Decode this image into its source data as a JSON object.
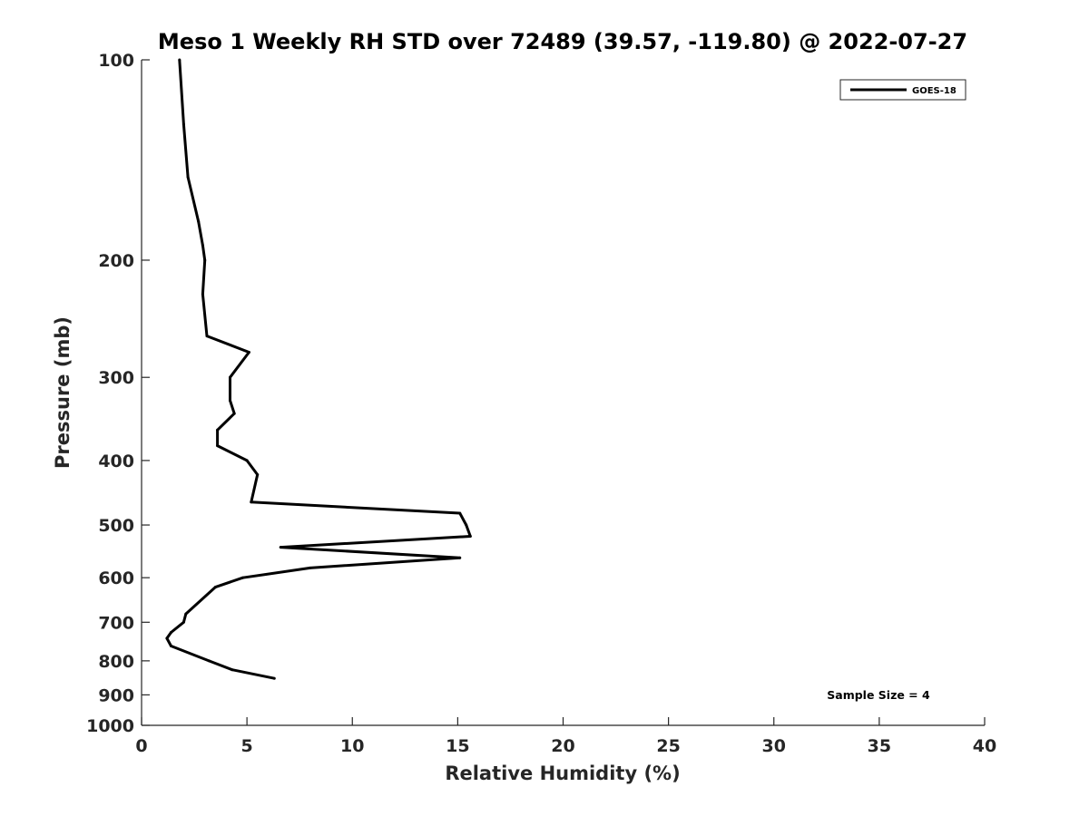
{
  "chart_data": {
    "type": "line",
    "title": "Meso 1 Weekly RH STD over 72489 (39.57, -119.80) @ 2022-07-27",
    "xlabel": "Relative Humidity (%)",
    "ylabel": "Pressure (mb)",
    "xlim": [
      0,
      40
    ],
    "ylim": [
      1000,
      100
    ],
    "yscale": "log",
    "x_ticks": [
      0,
      5,
      10,
      15,
      20,
      25,
      30,
      35,
      40
    ],
    "y_ticks": [
      100,
      200,
      300,
      400,
      500,
      600,
      700,
      800,
      900,
      1000
    ],
    "grid": false,
    "legend_position": "top-right",
    "annotation": "Sample Size = 4",
    "series": [
      {
        "name": "GOES-18",
        "color": "#000000",
        "points": [
          {
            "rh": 1.8,
            "p": 100
          },
          {
            "rh": 2.0,
            "p": 125
          },
          {
            "rh": 2.2,
            "p": 150
          },
          {
            "rh": 2.7,
            "p": 175
          },
          {
            "rh": 2.9,
            "p": 190
          },
          {
            "rh": 3.0,
            "p": 200
          },
          {
            "rh": 2.9,
            "p": 225
          },
          {
            "rh": 3.1,
            "p": 260
          },
          {
            "rh": 5.1,
            "p": 275
          },
          {
            "rh": 4.2,
            "p": 300
          },
          {
            "rh": 4.2,
            "p": 325
          },
          {
            "rh": 4.4,
            "p": 340
          },
          {
            "rh": 3.6,
            "p": 360
          },
          {
            "rh": 3.6,
            "p": 380
          },
          {
            "rh": 5.0,
            "p": 400
          },
          {
            "rh": 5.5,
            "p": 420
          },
          {
            "rh": 5.2,
            "p": 462
          },
          {
            "rh": 15.1,
            "p": 480
          },
          {
            "rh": 15.4,
            "p": 500
          },
          {
            "rh": 15.6,
            "p": 520
          },
          {
            "rh": 6.6,
            "p": 540
          },
          {
            "rh": 15.1,
            "p": 560
          },
          {
            "rh": 8.0,
            "p": 580
          },
          {
            "rh": 4.8,
            "p": 600
          },
          {
            "rh": 3.5,
            "p": 620
          },
          {
            "rh": 2.1,
            "p": 680
          },
          {
            "rh": 2.0,
            "p": 700
          },
          {
            "rh": 1.4,
            "p": 725
          },
          {
            "rh": 1.2,
            "p": 740
          },
          {
            "rh": 1.4,
            "p": 760
          },
          {
            "rh": 3.2,
            "p": 800
          },
          {
            "rh": 4.3,
            "p": 825
          },
          {
            "rh": 6.3,
            "p": 850
          }
        ]
      }
    ]
  }
}
